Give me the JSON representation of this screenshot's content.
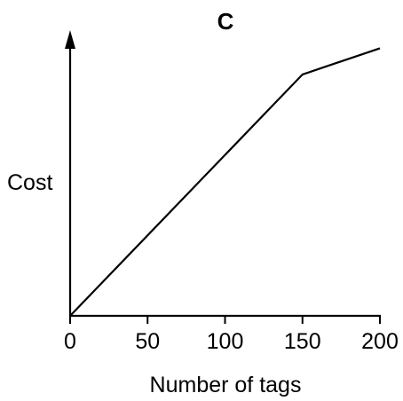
{
  "chart_data": {
    "type": "line",
    "title": "C",
    "xlabel": "Number of tags",
    "ylabel": "Cost",
    "x_ticks": [
      "0",
      "50",
      "100",
      "150",
      "200"
    ],
    "xlim": [
      0,
      200
    ],
    "ylim": [
      0,
      100
    ],
    "y_ticks_shown": false,
    "grid": false,
    "legend": "none",
    "series": [
      {
        "x": [
          0,
          150,
          200
        ],
        "y": [
          0,
          89.5,
          99.2
        ]
      }
    ],
    "colors": {
      "line": "#000000",
      "axis": "#000000"
    }
  }
}
